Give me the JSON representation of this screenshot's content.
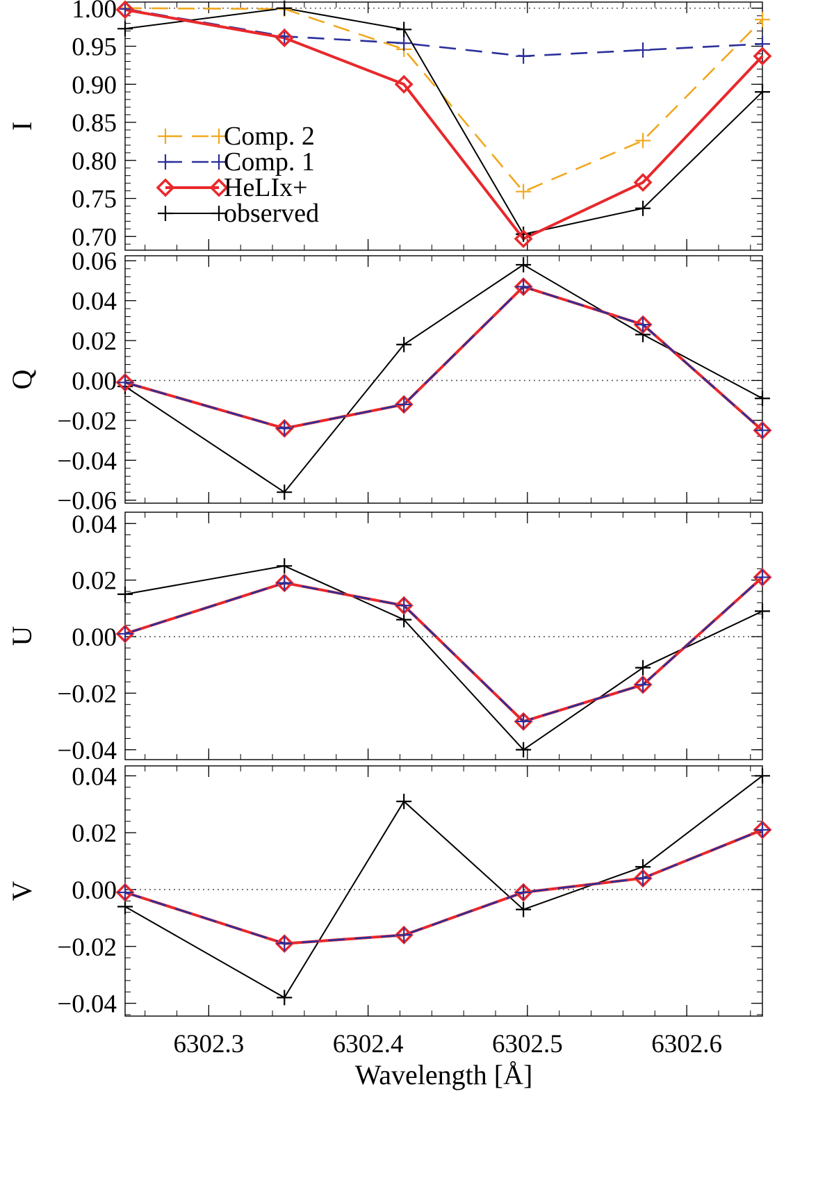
{
  "chart_data": {
    "type": "line",
    "title": "",
    "xlabel": "Wavelength [Å]",
    "x": [
      6302.2475,
      6302.3475,
      6302.4225,
      6302.4975,
      6302.5725,
      6302.6475
    ],
    "xlim": [
      6302.2475,
      6302.6475
    ],
    "xticks": [
      6302.3,
      6302.4,
      6302.5,
      6302.6
    ],
    "xtick_labels": [
      "6302.3",
      "6302.4",
      "6302.5",
      "6302.6"
    ],
    "legend": {
      "placement": "upper-left of panel I",
      "entries": [
        {
          "label": "Comp. 2",
          "series": "comp2"
        },
        {
          "label": "Comp. 1",
          "series": "comp1"
        },
        {
          "label": "HeLIx+",
          "series": "helix"
        },
        {
          "label": "observed",
          "series": "observed"
        }
      ]
    },
    "series_styles": {
      "comp2": {
        "color": "#f0a81e",
        "dash": "dashed",
        "marker": "plus"
      },
      "comp1": {
        "color": "#2b2f9a",
        "dash": "dashed",
        "marker": "plus"
      },
      "helix": {
        "color": "#e8282c",
        "dash": "solid",
        "marker": "diamond"
      },
      "observed": {
        "color": "#000000",
        "dash": "solid",
        "marker": "plus"
      }
    },
    "panels": [
      {
        "ylabel": "I",
        "ylim": [
          0.682,
          1.008
        ],
        "yticks": [
          0.7,
          0.75,
          0.8,
          0.85,
          0.9,
          0.95,
          1.0
        ],
        "ytick_labels": [
          "0.70",
          "0.75",
          "0.80",
          "0.85",
          "0.90",
          "0.95",
          "1.00"
        ],
        "reference_line": 1.0,
        "series": [
          {
            "key": "comp2",
            "name": "Comp. 2",
            "values": [
              1.0,
              0.999,
              0.946,
              0.759,
              0.826,
              0.985
            ]
          },
          {
            "key": "comp1",
            "name": "Comp. 1",
            "values": [
              0.999,
              0.963,
              0.954,
              0.937,
              0.945,
              0.953
            ]
          },
          {
            "key": "helix",
            "name": "HeLIx+",
            "values": [
              0.998,
              0.961,
              0.9,
              0.697,
              0.771,
              0.937
            ]
          },
          {
            "key": "observed",
            "name": "observed",
            "values": [
              0.973,
              1.0,
              0.972,
              0.703,
              0.737,
              0.89
            ]
          }
        ]
      },
      {
        "ylabel": "Q",
        "ylim": [
          -0.0615,
          0.0625
        ],
        "yticks": [
          -0.06,
          -0.04,
          -0.02,
          0.0,
          0.02,
          0.04,
          0.06
        ],
        "ytick_labels": [
          "−0.06",
          "−0.04",
          "−0.02",
          "0.00",
          "0.02",
          "0.04",
          "0.06"
        ],
        "reference_line": 0.0,
        "series": [
          {
            "key": "comp1",
            "name": "Comp. 1",
            "values": [
              -0.001,
              -0.024,
              -0.012,
              0.047,
              0.028,
              -0.025
            ]
          },
          {
            "key": "helix",
            "name": "HeLIx+",
            "values": [
              -0.001,
              -0.024,
              -0.012,
              0.047,
              0.028,
              -0.025
            ]
          },
          {
            "key": "observed",
            "name": "observed",
            "values": [
              -0.003,
              -0.056,
              0.018,
              0.058,
              0.023,
              -0.009
            ]
          }
        ]
      },
      {
        "ylabel": "U",
        "ylim": [
          -0.0435,
          0.044
        ],
        "yticks": [
          -0.04,
          -0.02,
          0.0,
          0.02,
          0.04
        ],
        "ytick_labels": [
          "−0.04",
          "−0.02",
          "0.00",
          "0.02",
          "0.04"
        ],
        "reference_line": 0.0,
        "series": [
          {
            "key": "comp1",
            "name": "Comp. 1",
            "values": [
              0.001,
              0.019,
              0.011,
              -0.03,
              -0.017,
              0.021
            ]
          },
          {
            "key": "helix",
            "name": "HeLIx+",
            "values": [
              0.001,
              0.019,
              0.011,
              -0.03,
              -0.017,
              0.021
            ]
          },
          {
            "key": "observed",
            "name": "observed",
            "values": [
              0.015,
              0.025,
              0.006,
              -0.04,
              -0.011,
              0.009
            ]
          }
        ]
      },
      {
        "ylabel": "V",
        "ylim": [
          -0.0445,
          0.0435
        ],
        "yticks": [
          -0.04,
          -0.02,
          0.0,
          0.02,
          0.04
        ],
        "ytick_labels": [
          "−0.04",
          "−0.02",
          "0.00",
          "0.02",
          "0.04"
        ],
        "reference_line": 0.0,
        "series": [
          {
            "key": "comp1",
            "name": "Comp. 1",
            "values": [
              -0.001,
              -0.019,
              -0.016,
              -0.001,
              0.004,
              0.021
            ]
          },
          {
            "key": "helix",
            "name": "HeLIx+",
            "values": [
              -0.001,
              -0.019,
              -0.016,
              -0.001,
              0.004,
              0.021
            ]
          },
          {
            "key": "observed",
            "name": "observed",
            "values": [
              -0.006,
              -0.038,
              0.031,
              -0.007,
              0.008,
              0.04
            ]
          }
        ]
      }
    ]
  }
}
